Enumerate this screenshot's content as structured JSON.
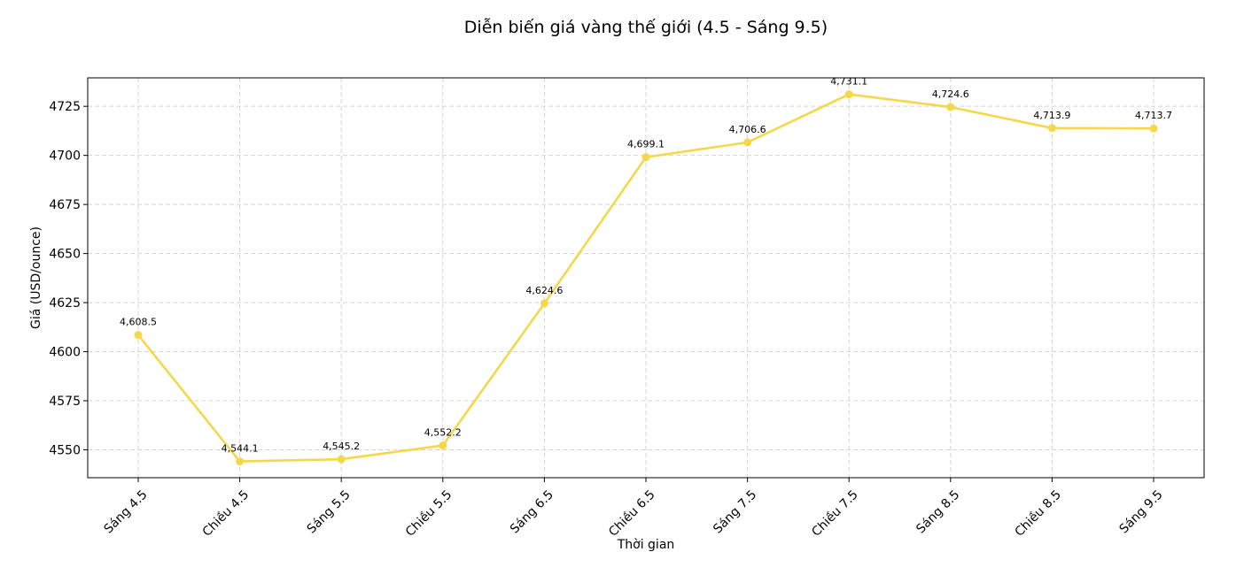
{
  "chart_data": {
    "type": "line",
    "title": "Diễn biến giá vàng thế giới (4.5 - Sáng 9.5)",
    "xlabel": "Thời gian",
    "ylabel": "Giá (USD/ounce)",
    "categories": [
      "Sáng 4.5",
      "Chiều 4.5",
      "Sáng 5.5",
      "Chiều 5.5",
      "Sáng 6.5",
      "Chiều 6.5",
      "Sáng 7.5",
      "Chiều 7.5",
      "Sáng 8.5",
      "Chiều 8.5",
      "Sáng 9.5"
    ],
    "values": [
      4608.5,
      4544.1,
      4545.2,
      4552.2,
      4624.6,
      4699.1,
      4706.6,
      4731.1,
      4724.6,
      4713.9,
      4713.7
    ],
    "data_labels": [
      "4,608.5",
      "4,544.1",
      "4,545.2",
      "4,552.2",
      "4,624.6",
      "4,699.1",
      "4,706.6",
      "4,731.1",
      "4,724.6",
      "4,713.9",
      "4,713.7"
    ],
    "yticks": [
      4550,
      4575,
      4600,
      4625,
      4650,
      4675,
      4700,
      4725
    ],
    "ylim": [
      4535.8,
      4739.5
    ],
    "grid": true,
    "line_color": "#f5d84a",
    "grid_color": "#d4d4d4"
  }
}
